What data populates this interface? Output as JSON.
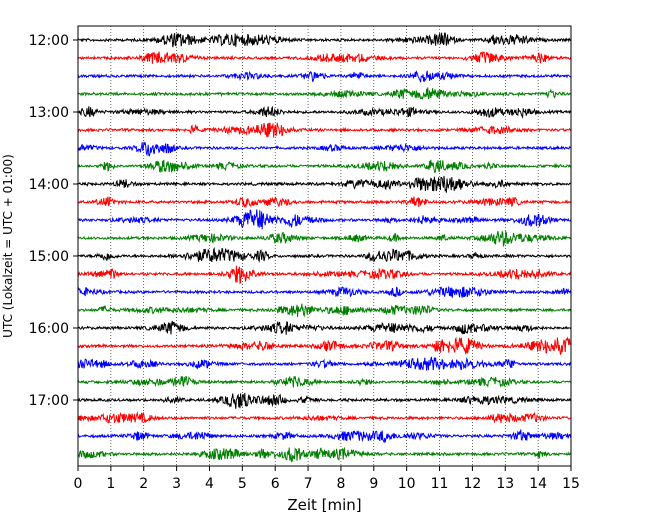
{
  "chart_data": {
    "type": "line",
    "title": "",
    "xlabel": "Zeit  [min]",
    "ylabel": "UTC (Lokalzeit = UTC + 01:00)",
    "xlim": [
      0,
      15
    ],
    "x_ticks": [
      "0",
      "1",
      "2",
      "3",
      "4",
      "5",
      "6",
      "7",
      "8",
      "9",
      "10",
      "11",
      "12",
      "13",
      "14",
      "15"
    ],
    "y_ticks": [
      "12:00",
      "13:00",
      "14:00",
      "15:00",
      "16:00",
      "17:00"
    ],
    "grid": {
      "x": true,
      "y": false,
      "style": "dotted"
    },
    "series_colors": [
      "#000000",
      "#ff0000",
      "#0000ff",
      "#007f00"
    ],
    "traces": [
      {
        "start": "12:00",
        "color": "#000000"
      },
      {
        "start": "12:15",
        "color": "#ff0000"
      },
      {
        "start": "12:30",
        "color": "#0000ff"
      },
      {
        "start": "12:45",
        "color": "#007f00"
      },
      {
        "start": "13:00",
        "color": "#000000"
      },
      {
        "start": "13:15",
        "color": "#ff0000"
      },
      {
        "start": "13:30",
        "color": "#0000ff"
      },
      {
        "start": "13:45",
        "color": "#007f00"
      },
      {
        "start": "14:00",
        "color": "#000000"
      },
      {
        "start": "14:15",
        "color": "#ff0000"
      },
      {
        "start": "14:30",
        "color": "#0000ff"
      },
      {
        "start": "14:45",
        "color": "#007f00"
      },
      {
        "start": "15:00",
        "color": "#000000"
      },
      {
        "start": "15:15",
        "color": "#ff0000"
      },
      {
        "start": "15:30",
        "color": "#0000ff"
      },
      {
        "start": "15:45",
        "color": "#007f00"
      },
      {
        "start": "16:00",
        "color": "#000000"
      },
      {
        "start": "16:15",
        "color": "#ff0000"
      },
      {
        "start": "16:30",
        "color": "#0000ff"
      },
      {
        "start": "16:45",
        "color": "#007f00"
      },
      {
        "start": "17:00",
        "color": "#000000"
      },
      {
        "start": "17:15",
        "color": "#ff0000"
      },
      {
        "start": "17:30",
        "color": "#0000ff"
      },
      {
        "start": "17:45",
        "color": "#007f00"
      }
    ]
  }
}
